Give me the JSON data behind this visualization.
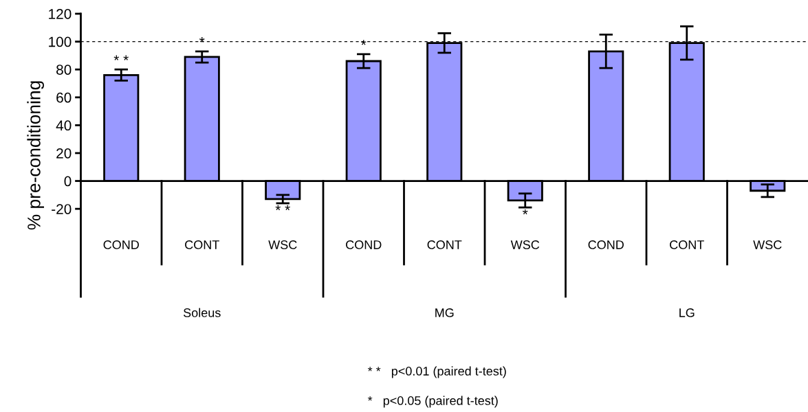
{
  "chart_data": {
    "type": "bar",
    "ylabel": "% pre-conditioning",
    "categories": [
      "COND",
      "CONT",
      "WSC",
      "COND",
      "CONT",
      "WSC",
      "COND",
      "CONT",
      "WSC"
    ],
    "values": [
      76,
      89,
      -13,
      86,
      99,
      -14,
      93,
      99,
      -7
    ],
    "errors": [
      4,
      4,
      3,
      5,
      7,
      5,
      12,
      12,
      4.5
    ],
    "value_labels": [
      "* *",
      "*",
      "* *",
      "*",
      null,
      "*",
      null,
      null,
      null
    ],
    "color": "#9999ff",
    "ylim": [
      -83,
      120
    ],
    "yticks": [
      -20,
      0,
      20,
      40,
      60,
      80,
      100,
      120
    ],
    "ref_lines": [
      {
        "axis": "y",
        "value": 100,
        "line_style": "dashed"
      }
    ],
    "annotations": [
      "Soleus",
      "MG",
      "LG",
      "* *   p<0.01 (paired t-test)",
      "*   p<0.05 (paired t-test)"
    ],
    "grid": false,
    "legend": false
  }
}
